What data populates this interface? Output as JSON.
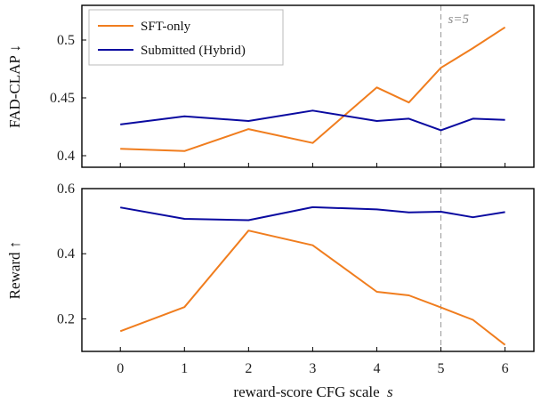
{
  "colors": {
    "sft": "#f07d1e",
    "hybrid": "#0a0aa0",
    "vline": "#999999"
  },
  "chart_data": [
    {
      "type": "line",
      "panel": "top",
      "ylabel": "FAD-CLAP ↓",
      "ylim": [
        0.39,
        0.53
      ],
      "yticks": [
        0.4,
        0.45,
        0.5
      ],
      "ytick_labels": [
        "0.4",
        "0.45",
        "0.5"
      ],
      "annotation": "s=5",
      "vline_x": 5,
      "legend": "top-left",
      "series": [
        {
          "name": "SFT-only",
          "color_key": "sft",
          "x": [
            0,
            1,
            2,
            3,
            4,
            4.5,
            5,
            5.5,
            6
          ],
          "values": [
            0.406,
            0.404,
            0.423,
            0.411,
            0.459,
            0.446,
            0.476,
            0.493,
            0.511
          ]
        },
        {
          "name": "Submitted (Hybrid)",
          "color_key": "hybrid",
          "x": [
            0,
            1,
            2,
            3,
            4,
            4.5,
            5,
            5.5,
            6
          ],
          "values": [
            0.427,
            0.434,
            0.43,
            0.439,
            0.43,
            0.432,
            0.422,
            0.432,
            0.431
          ]
        }
      ]
    },
    {
      "type": "line",
      "panel": "bottom",
      "ylabel": "Reward ↑",
      "ylim": [
        0.1,
        0.6
      ],
      "yticks": [
        0.2,
        0.4,
        0.6
      ],
      "ytick_labels": [
        "0.2",
        "0.4",
        "0.6"
      ],
      "xlabel": "reward-score CFG scale s",
      "xticks": [
        0,
        1,
        2,
        3,
        4,
        5,
        6
      ],
      "xtick_labels": [
        "0",
        "1",
        "2",
        "3",
        "4",
        "5",
        "6"
      ],
      "vline_x": 5,
      "series": [
        {
          "name": "SFT-only",
          "color_key": "sft",
          "x": [
            0,
            1,
            2,
            3,
            4,
            4.5,
            5,
            5.5,
            6
          ],
          "values": [
            0.162,
            0.236,
            0.471,
            0.426,
            0.283,
            0.272,
            0.235,
            0.197,
            0.12
          ]
        },
        {
          "name": "Submitted (Hybrid)",
          "color_key": "hybrid",
          "x": [
            0,
            1,
            2,
            3,
            4,
            4.5,
            5,
            5.5,
            6
          ],
          "values": [
            0.542,
            0.507,
            0.503,
            0.543,
            0.536,
            0.527,
            0.529,
            0.512,
            0.528
          ]
        }
      ]
    }
  ]
}
